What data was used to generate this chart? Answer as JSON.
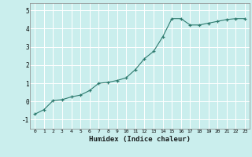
{
  "x": [
    0,
    1,
    2,
    3,
    4,
    5,
    6,
    7,
    8,
    9,
    10,
    11,
    12,
    13,
    14,
    15,
    16,
    17,
    18,
    19,
    20,
    21,
    22,
    23
  ],
  "y": [
    -0.7,
    -0.45,
    0.05,
    0.1,
    0.25,
    0.35,
    0.6,
    1.0,
    1.05,
    1.15,
    1.3,
    1.75,
    2.35,
    2.75,
    3.55,
    4.55,
    4.55,
    4.2,
    4.2,
    4.3,
    4.4,
    4.5,
    4.55,
    4.55
  ],
  "xlabel": "Humidex (Indice chaleur)",
  "bg_color": "#caeeed",
  "grid_color": "#ffffff",
  "line_color": "#2d7a6e",
  "marker_color": "#2d7a6e",
  "ylim": [
    -1.5,
    5.4
  ],
  "xlim": [
    -0.5,
    23.5
  ],
  "yticks": [
    -1,
    0,
    1,
    2,
    3,
    4,
    5
  ],
  "xticks": [
    0,
    1,
    2,
    3,
    4,
    5,
    6,
    7,
    8,
    9,
    10,
    11,
    12,
    13,
    14,
    15,
    16,
    17,
    18,
    19,
    20,
    21,
    22,
    23
  ]
}
